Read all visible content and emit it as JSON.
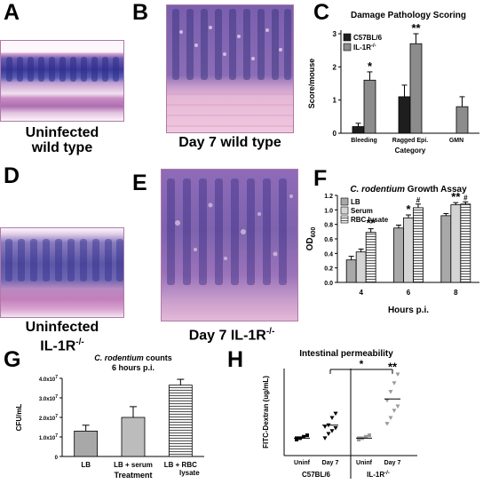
{
  "panels": {
    "A": {
      "letter": "A",
      "caption_line1": "Uninfected",
      "caption_line2": "wild type"
    },
    "B": {
      "letter": "B",
      "caption": "Day 7 wild type"
    },
    "C": {
      "letter": "C"
    },
    "D": {
      "letter": "D",
      "caption_line1": "Uninfected",
      "caption_line2": "IL-1R",
      "caption_sup": "-/-"
    },
    "E": {
      "letter": "E",
      "caption": "Day 7 IL-1R",
      "caption_sup": "-/-"
    },
    "F": {
      "letter": "F"
    },
    "G": {
      "letter": "G"
    },
    "H": {
      "letter": "H"
    }
  },
  "chart_data": [
    {
      "id": "C",
      "type": "bar",
      "title": "Damage Pathology Scoring",
      "xlabel": "Category",
      "ylabel": "Score/mouse",
      "categories": [
        "Bleeding",
        "Ragged Epi.",
        "GMN"
      ],
      "series": [
        {
          "name": "C57BL/6",
          "color": "#1e1e1e",
          "values": [
            0.2,
            1.1,
            0.0
          ],
          "err": [
            0.1,
            0.35,
            0.0
          ]
        },
        {
          "name": "IL-1R-/-",
          "color": "#8c8c8c",
          "values": [
            1.6,
            2.7,
            0.8
          ],
          "err": [
            0.25,
            0.3,
            0.3
          ]
        }
      ],
      "legend_labels": [
        "C57BL/6",
        "IL-1R"
      ],
      "legend_sup": "-/-",
      "ylim": [
        0,
        3
      ],
      "yticks": [
        "0",
        "1",
        "2",
        "3"
      ],
      "significance": [
        {
          "category": "Bleeding",
          "series": 1,
          "mark": "*"
        },
        {
          "category": "Ragged Epi.",
          "series": 1,
          "mark": "**"
        }
      ]
    },
    {
      "id": "F",
      "type": "bar",
      "title_italic": "C. rodentium",
      "title_rest": "Growth Assay",
      "xlabel": "Hours p.i.",
      "ylabel": "OD",
      "ylabel_sub": "600",
      "categories": [
        "4",
        "6",
        "8"
      ],
      "series": [
        {
          "name": "LB",
          "color": "#a8a8a8",
          "values": [
            0.31,
            0.75,
            0.92
          ],
          "err": [
            0.05,
            0.04,
            0.03
          ]
        },
        {
          "name": "Serum",
          "color": "#d4d4d4",
          "values": [
            0.42,
            0.89,
            1.07
          ],
          "err": [
            0.04,
            0.04,
            0.03
          ]
        },
        {
          "name": "RBC lysate",
          "color": "#e0e0e0",
          "values": [
            0.69,
            1.03,
            1.08
          ],
          "err": [
            0.05,
            0.05,
            0.03
          ]
        }
      ],
      "ylim": [
        0,
        1.2
      ],
      "yticks": [
        "0.0",
        "0.2",
        "0.4",
        "0.6",
        "0.8",
        "1.0",
        "1.2"
      ],
      "significance": [
        {
          "category": "4",
          "series": 2,
          "mark": "**"
        },
        {
          "category": "6",
          "series": 1,
          "mark": "*"
        },
        {
          "category": "6",
          "series": 2,
          "mark": "#"
        },
        {
          "category": "8",
          "series": 1,
          "mark": "**"
        },
        {
          "category": "8",
          "series": 2,
          "mark": "#"
        }
      ]
    },
    {
      "id": "G",
      "type": "bar",
      "title_italic": "C. rodentium",
      "title_rest": "counts",
      "subtitle": "6 hours p.i.",
      "xlabel": "Treatment",
      "ylabel": "CFU/mL",
      "categories": [
        "LB",
        "LB + serum",
        "LB + RBC lysate"
      ],
      "category_lines": [
        [
          "LB"
        ],
        [
          "LB + serum"
        ],
        [
          "LB + RBC",
          "lysate"
        ]
      ],
      "values": [
        13000000,
        20000000,
        36500000
      ],
      "err": [
        3000000,
        5500000,
        3000000
      ],
      "colors": [
        "#a8a8a8",
        "#bcbcbc",
        "#e6e6e6"
      ],
      "ylim": [
        0,
        40000000
      ],
      "yticks": [
        {
          "v": 0,
          "label": "0"
        },
        {
          "v": 10000000,
          "label": "1.0x10",
          "sup": "7"
        },
        {
          "v": 20000000,
          "label": "2.0x10",
          "sup": "7"
        },
        {
          "v": 30000000,
          "label": "3.0x10",
          "sup": "7"
        },
        {
          "v": 40000000,
          "label": "4.0x10",
          "sup": "7"
        }
      ]
    },
    {
      "id": "H",
      "type": "scatter",
      "title": "Intestinal permeability",
      "ylabel": "FITC-Dextran (ug/mL)",
      "groups": [
        {
          "label": "Uninf",
          "strain": "C57BL/6",
          "marker": "square",
          "color": "#000000",
          "mean": 1.2,
          "points": [
            1.1,
            1.2,
            1.3,
            1.4,
            1.2
          ]
        },
        {
          "label": "Day 7",
          "strain": "C57BL/6",
          "marker": "triangle-down",
          "color": "#000000",
          "mean": 2.1,
          "points": [
            1.2,
            1.5,
            1.7,
            1.9,
            2.0,
            2.1,
            2.6,
            2.9
          ]
        },
        {
          "label": "Uninf",
          "strain": "IL-1R-/-",
          "marker": "square",
          "color": "#999999",
          "mean": 1.2,
          "points": [
            1.1,
            1.2,
            1.3,
            1.4,
            1.2
          ]
        },
        {
          "label": "Day 7",
          "strain": "IL-1R-/-",
          "marker": "triangle-down",
          "color": "#999999",
          "mean": 3.9,
          "points": [
            2.2,
            2.6,
            3.1,
            3.4,
            3.8,
            4.4,
            5.0,
            5.6
          ]
        }
      ],
      "group_labels": [
        "C57BL/6",
        "IL-1R"
      ],
      "group_label_sup": "-/-",
      "ylim": [
        0,
        6
      ],
      "significance": [
        {
          "between": [
            1,
            3
          ],
          "mark": "*"
        },
        {
          "group": 3,
          "mark": "**"
        }
      ]
    }
  ]
}
